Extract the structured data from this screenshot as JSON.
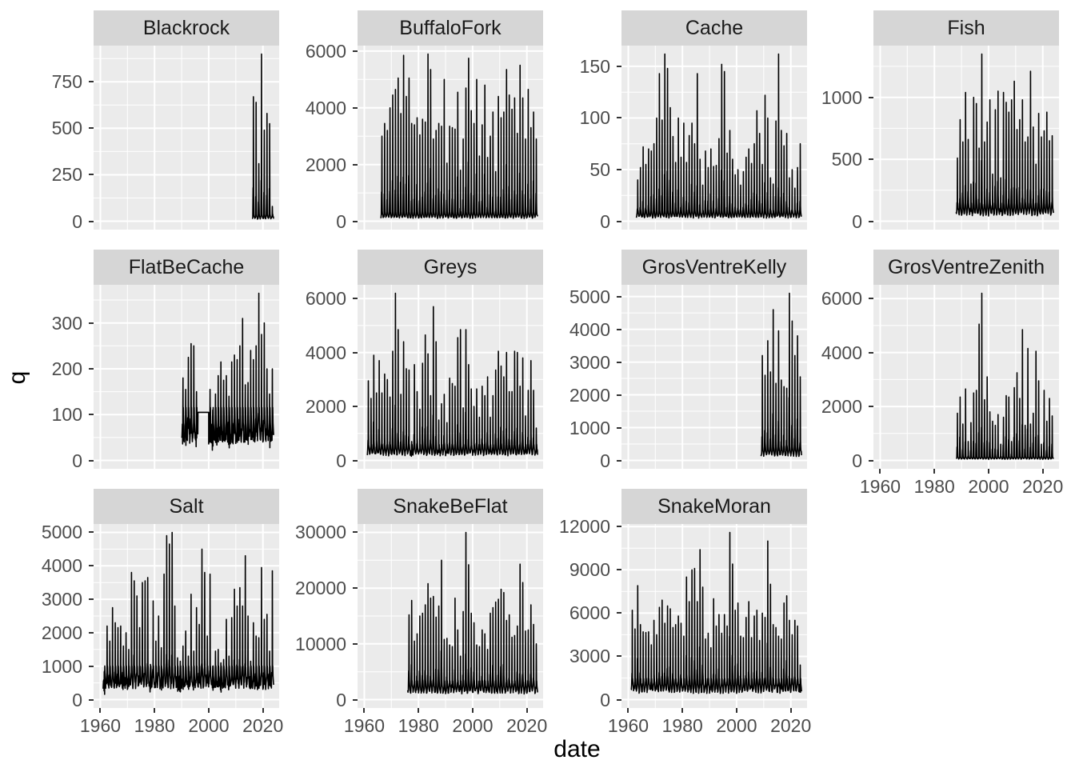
{
  "chart_data": {
    "type": "line",
    "title": "",
    "xlabel": "date",
    "ylabel": "q",
    "legend": "none",
    "grid": "on",
    "x_domain": [
      1957.5,
      2026
    ],
    "x_ticks": [
      1960,
      1980,
      2000,
      2020
    ],
    "x_tick_labels": [
      "1960",
      "1980",
      "2000",
      "2020"
    ],
    "x_minor_ticks": [
      1970,
      1990,
      2010
    ],
    "colors": {
      "panel_bg": "#ebebeb",
      "strip_bg": "#d6d6d6",
      "gridline": "#ffffff",
      "series": "#000000",
      "tick_text": "#4d4d4d",
      "axis_title_text": "#000000",
      "tick_mark": "#333333",
      "page_bg": "#ffffff"
    },
    "facets": [
      {
        "name": "Blackrock",
        "row": 0,
        "col": 0,
        "show_x_axis": false,
        "y_ticks": [
          0,
          250,
          500,
          750
        ],
        "y_max_data": 900,
        "base": 18,
        "start_year": 2016,
        "end_year": 2023,
        "peaks": [
          670,
          640,
          310,
          900,
          490,
          580,
          525,
          80
        ]
      },
      {
        "name": "BuffaloFork",
        "row": 0,
        "col": 1,
        "show_x_axis": false,
        "y_ticks": [
          0,
          2000,
          4000,
          6000
        ],
        "y_max_data": 5900,
        "base": 160,
        "start_year": 1966,
        "end_year": 2023,
        "peaks": [
          3000,
          3450,
          3200,
          4000,
          4450,
          4650,
          5050,
          3800,
          5850,
          4400,
          5050,
          3450,
          3400,
          3650,
          3050,
          3600,
          3500,
          5900,
          5350,
          2900,
          3200,
          3450,
          3350,
          5000,
          2050,
          3350,
          3300,
          3250,
          4550,
          1800,
          2900,
          4700,
          5750,
          3900,
          3450,
          5000,
          2300,
          3400,
          4800,
          2250,
          3000,
          3850,
          1750,
          4400,
          3650,
          3850,
          5350,
          4450,
          3950,
          4350,
          3100,
          5500,
          4350,
          2900,
          4650,
          3300,
          3850,
          2900
        ]
      },
      {
        "name": "Cache",
        "row": 0,
        "col": 2,
        "show_x_axis": false,
        "y_ticks": [
          0,
          50,
          100,
          150
        ],
        "y_max_data": 162,
        "base": 5,
        "start_year": 1963,
        "end_year": 2023,
        "peaks": [
          40,
          52,
          72,
          55,
          70,
          68,
          75,
          100,
          143,
          98,
          162,
          148,
          110,
          82,
          57,
          100,
          62,
          95,
          57,
          83,
          95,
          75,
          143,
          60,
          35,
          68,
          52,
          70,
          53,
          54,
          80,
          152,
          145,
          66,
          88,
          60,
          45,
          50,
          35,
          48,
          62,
          70,
          56,
          75,
          107,
          85,
          55,
          122,
          100,
          42,
          36,
          97,
          162,
          88,
          73,
          85,
          42,
          50,
          32,
          52,
          75
        ]
      },
      {
        "name": "Fish",
        "row": 0,
        "col": 3,
        "show_x_axis": false,
        "y_ticks": [
          0,
          500,
          1000
        ],
        "y_max_data": 1350,
        "base": 70,
        "start_year": 1988,
        "end_year": 2023,
        "peaks": [
          510,
          820,
          640,
          1040,
          660,
          300,
          1000,
          950,
          590,
          1350,
          640,
          800,
          980,
          380,
          900,
          1050,
          350,
          1040,
          960,
          880,
          980,
          1130,
          740,
          820,
          980,
          640,
          680,
          1210,
          760,
          460,
          870,
          680,
          730,
          880,
          650,
          690
        ]
      },
      {
        "name": "FlatBeCache",
        "row": 1,
        "col": 0,
        "show_x_axis": false,
        "y_ticks": [
          0,
          100,
          200,
          300
        ],
        "y_max_data": 365,
        "base": 55,
        "start_year": 1990,
        "end_year": 2023,
        "flat_segment": {
          "start": 1996,
          "end": 1999,
          "value": 105
        },
        "peaks": [
          180,
          155,
          225,
          255,
          250,
          150,
          105,
          105,
          105,
          105,
          155,
          110,
          145,
          185,
          215,
          175,
          185,
          140,
          215,
          230,
          220,
          250,
          310,
          165,
          170,
          240,
          220,
          250,
          365,
          275,
          300,
          200,
          145,
          200
        ]
      },
      {
        "name": "Greys",
        "row": 1,
        "col": 1,
        "show_x_axis": false,
        "y_ticks": [
          0,
          2000,
          4000,
          6000
        ],
        "y_max_data": 6200,
        "base": 280,
        "start_year": 1961,
        "end_year": 2023,
        "peaks": [
          2950,
          2300,
          3900,
          2500,
          3700,
          2500,
          3200,
          3000,
          2350,
          4050,
          6200,
          4850,
          2450,
          4400,
          3400,
          3350,
          700,
          3550,
          2550,
          1900,
          3600,
          4650,
          3950,
          2400,
          5700,
          4400,
          1500,
          2100,
          2450,
          1400,
          3050,
          2850,
          2750,
          4550,
          4850,
          1950,
          4850,
          3550,
          2650,
          2000,
          2650,
          1600,
          2750,
          2400,
          3100,
          1600,
          2400,
          3350,
          4050,
          3500,
          3100,
          4000,
          2550,
          2550,
          4050,
          4000,
          2750,
          3800,
          1650,
          2600,
          3700,
          2600,
          1200
        ]
      },
      {
        "name": "GrosVentreKelly",
        "row": 1,
        "col": 2,
        "show_x_axis": false,
        "y_ticks": [
          0,
          1000,
          2000,
          3000,
          4000,
          5000
        ],
        "y_max_data": 5100,
        "base": 200,
        "start_year": 2009,
        "end_year": 2023,
        "peaks": [
          3200,
          2600,
          3650,
          2700,
          4600,
          2350,
          3950,
          2450,
          2250,
          2200,
          5100,
          4250,
          3200,
          3800,
          2550
        ]
      },
      {
        "name": "GrosVentreZenith",
        "row": 1,
        "col": 3,
        "show_x_axis": true,
        "y_ticks": [
          0,
          2000,
          4000,
          6000
        ],
        "y_max_data": 6200,
        "base": 70,
        "start_year": 1988,
        "end_year": 2023,
        "peaks": [
          1750,
          2350,
          1350,
          2650,
          700,
          1400,
          2500,
          2600,
          5050,
          6200,
          2250,
          3100,
          1800,
          1450,
          1300,
          1700,
          600,
          1600,
          2400,
          2350,
          700,
          2700,
          3250,
          2300,
          4850,
          1300,
          4150,
          1350,
          1750,
          4050,
          2950,
          600,
          2600,
          1450,
          2300,
          1650
        ]
      },
      {
        "name": "Salt",
        "row": 2,
        "col": 0,
        "show_x_axis": true,
        "y_ticks": [
          0,
          1000,
          2000,
          3000,
          4000,
          5000
        ],
        "y_max_data": 5000,
        "base": 480,
        "start_year": 1961,
        "end_year": 2023,
        "peaks": [
          850,
          2200,
          1750,
          2750,
          2300,
          2150,
          2200,
          1600,
          2000,
          1500,
          3800,
          3550,
          3100,
          2150,
          3500,
          3550,
          3650,
          1050,
          2950,
          1750,
          2500,
          1550,
          3750,
          4900,
          4650,
          5000,
          2800,
          1250,
          1150,
          1600,
          2050,
          1300,
          3150,
          1450,
          2750,
          2250,
          4500,
          3800,
          1900,
          3750,
          1000,
          1450,
          1500,
          1100,
          1200,
          2400,
          1300,
          2450,
          3300,
          2800,
          3350,
          2800,
          4300,
          2500,
          1150,
          2300,
          1900,
          1850,
          3950,
          2400,
          2550,
          1450,
          3850
        ]
      },
      {
        "name": "SnakeBeFlat",
        "row": 2,
        "col": 1,
        "show_x_axis": true,
        "y_ticks": [
          0,
          10000,
          20000,
          30000
        ],
        "y_max_data": 30000,
        "base": 1600,
        "start_year": 1976,
        "end_year": 2023,
        "peaks": [
          15200,
          17800,
          10500,
          11800,
          15000,
          15500,
          17000,
          20800,
          18200,
          18500,
          14800,
          16800,
          25000,
          10800,
          11000,
          9800,
          9500,
          18200,
          12500,
          7800,
          15800,
          30000,
          24200,
          15500,
          13800,
          9800,
          9500,
          12500,
          11800,
          9000,
          15500,
          16500,
          17500,
          18000,
          19800,
          19200,
          14200,
          15200,
          11200,
          11500,
          13200,
          24300,
          21000,
          12300,
          12500,
          17000,
          13500,
          10000
        ]
      },
      {
        "name": "SnakeMoran",
        "row": 2,
        "col": 2,
        "show_x_axis": true,
        "y_ticks": [
          0,
          3000,
          6000,
          9000,
          12000
        ],
        "y_max_data": 11600,
        "base": 700,
        "start_year": 1961,
        "end_year": 2023,
        "peaks": [
          6200,
          4900,
          7900,
          5200,
          4700,
          4650,
          4700,
          3800,
          5500,
          4500,
          6400,
          6900,
          5300,
          6500,
          6300,
          5000,
          5200,
          5800,
          5300,
          4400,
          8500,
          6800,
          9000,
          9100,
          6800,
          10400,
          7800,
          4200,
          4600,
          3600,
          7000,
          5100,
          5900,
          4600,
          5900,
          5100,
          11600,
          9400,
          6200,
          6700,
          4400,
          4300,
          5700,
          6800,
          4300,
          5800,
          6200,
          4100,
          6000,
          5700,
          11000,
          8000,
          5200,
          5000,
          4400,
          4200,
          6700,
          7200,
          5500,
          4500,
          5500,
          5100,
          2400
        ]
      }
    ]
  }
}
